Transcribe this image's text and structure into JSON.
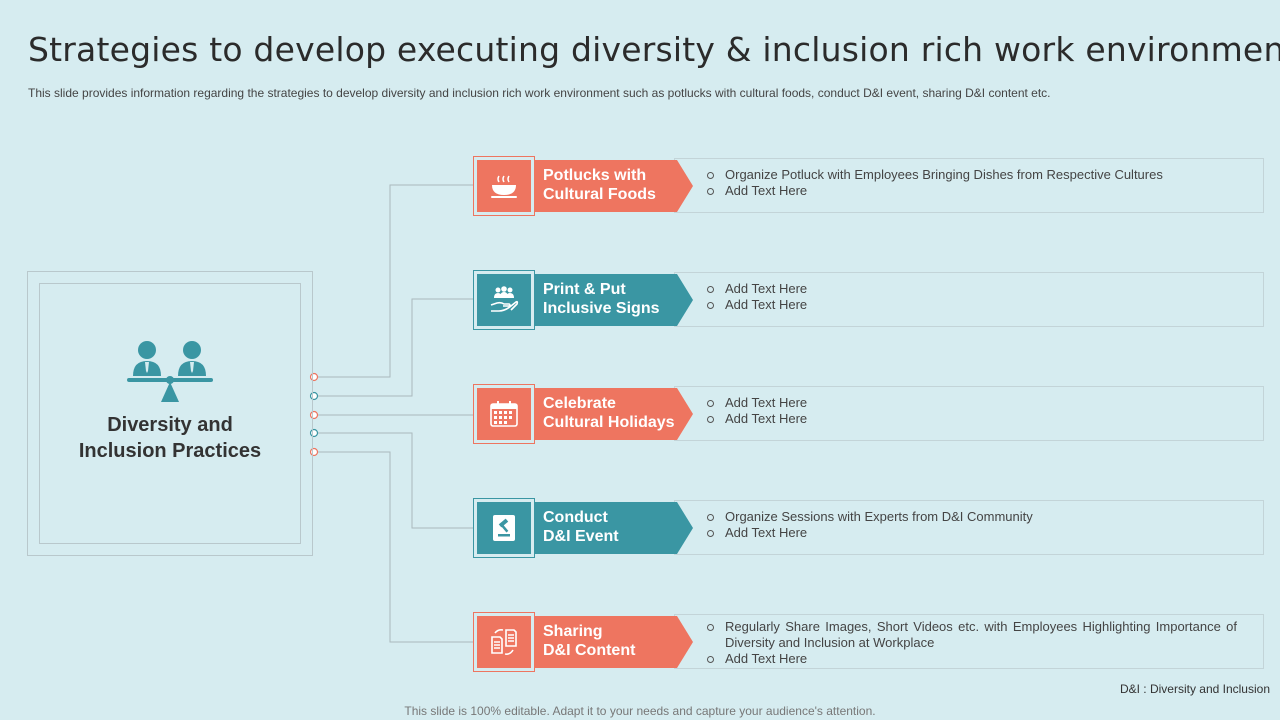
{
  "slide": {
    "title": "Strategies to develop executing diversity & inclusion rich work environment",
    "subtitle": "This slide provides information regarding the strategies to develop diversity and inclusion rich work environment such as potlucks with cultural foods, conduct D&I event, sharing D&I content etc."
  },
  "center": {
    "label_line1": "Diversity and",
    "label_line2": "Inclusion Practices",
    "icon": "people-balance-icon"
  },
  "strategies": [
    {
      "label_line1": "Potlucks with",
      "label_line2": "Cultural Foods",
      "icon": "food-bowl-icon",
      "color": "#ee7560",
      "bullets": [
        "Organize Potluck with Employees Bringing Dishes from Respective Cultures",
        "Add Text Here"
      ]
    },
    {
      "label_line1": "Print & Put",
      "label_line2": "Inclusive Signs",
      "icon": "hand-group-icon",
      "color": "#3a96a3",
      "bullets": [
        "Add Text Here",
        "Add Text Here"
      ]
    },
    {
      "label_line1": "Celebrate",
      "label_line2": "Cultural Holidays",
      "icon": "calendar-icon",
      "color": "#ee7560",
      "bullets": [
        "Add Text Here",
        "Add Text Here"
      ]
    },
    {
      "label_line1": "Conduct",
      "label_line2": "D&I Event",
      "icon": "gavel-book-icon",
      "color": "#3a96a3",
      "bullets": [
        "Organize Sessions with Experts from D&I Community",
        "Add Text Here"
      ]
    },
    {
      "label_line1": "Sharing",
      "label_line2": "D&I Content",
      "icon": "document-share-icon",
      "color": "#ee7560",
      "bullets": [
        "Regularly Share Images, Short Videos etc. with Employees Highlighting Importance of Diversity and Inclusion at Workplace",
        "Add Text Here"
      ]
    }
  ],
  "footnote": "D&I : Diversity and Inclusion",
  "footer": "This slide is 100% editable. Adapt it to your needs and capture your audience's attention."
}
